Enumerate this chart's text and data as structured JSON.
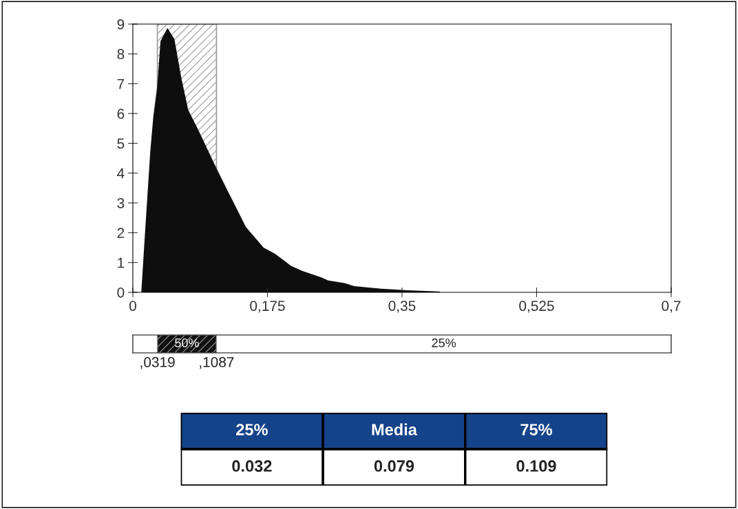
{
  "chart_data": [
    {
      "type": "area",
      "x": [
        0,
        0.011,
        0.015,
        0.0227,
        0.0266,
        0.0316,
        0.036,
        0.045,
        0.054,
        0.063,
        0.072,
        0.087,
        0.108,
        0.123,
        0.147,
        0.17,
        0.185,
        0.206,
        0.22,
        0.245,
        0.254,
        0.275,
        0.288,
        0.323,
        0.357,
        0.398,
        0.4
      ],
      "series": [
        {
          "color": "#0e0e0e",
          "values": [
            0,
            0,
            1.66,
            4.73,
            5.89,
            6.89,
            8.43,
            8.87,
            8.5,
            7.2,
            6.12,
            5.35,
            4.2,
            3.42,
            2.19,
            1.5,
            1.29,
            0.88,
            0.72,
            0.5,
            0.4,
            0.31,
            0.21,
            0.12,
            0.07,
            0.03,
            0
          ]
        }
      ],
      "xlim": [
        0,
        0.7
      ],
      "ylim": [
        0,
        9
      ],
      "xticks": [
        0,
        {
          "value": 0.175,
          "label": "0,175"
        },
        {
          "value": 0.35,
          "label": "0,35"
        },
        {
          "value": 0.525,
          "label": "0,525"
        },
        {
          "value": 0.7,
          "label": "0,7"
        }
      ],
      "yticks": [
        0,
        1,
        2,
        3,
        4,
        5,
        6,
        7,
        8,
        9
      ],
      "bands": [
        {
          "axis": "x",
          "from": 0.0319,
          "to": 0.1087,
          "color": "#999999"
        }
      ],
      "annotations": [
        ",0319",
        ",1087",
        "50%",
        "25%"
      ],
      "grid": false
    },
    {
      "type": "other",
      "categories": [
        "25%",
        "Media",
        "75%"
      ],
      "value_labels": [
        "0.032",
        "0.079",
        "0.109"
      ],
      "color": "#15438a"
    }
  ]
}
